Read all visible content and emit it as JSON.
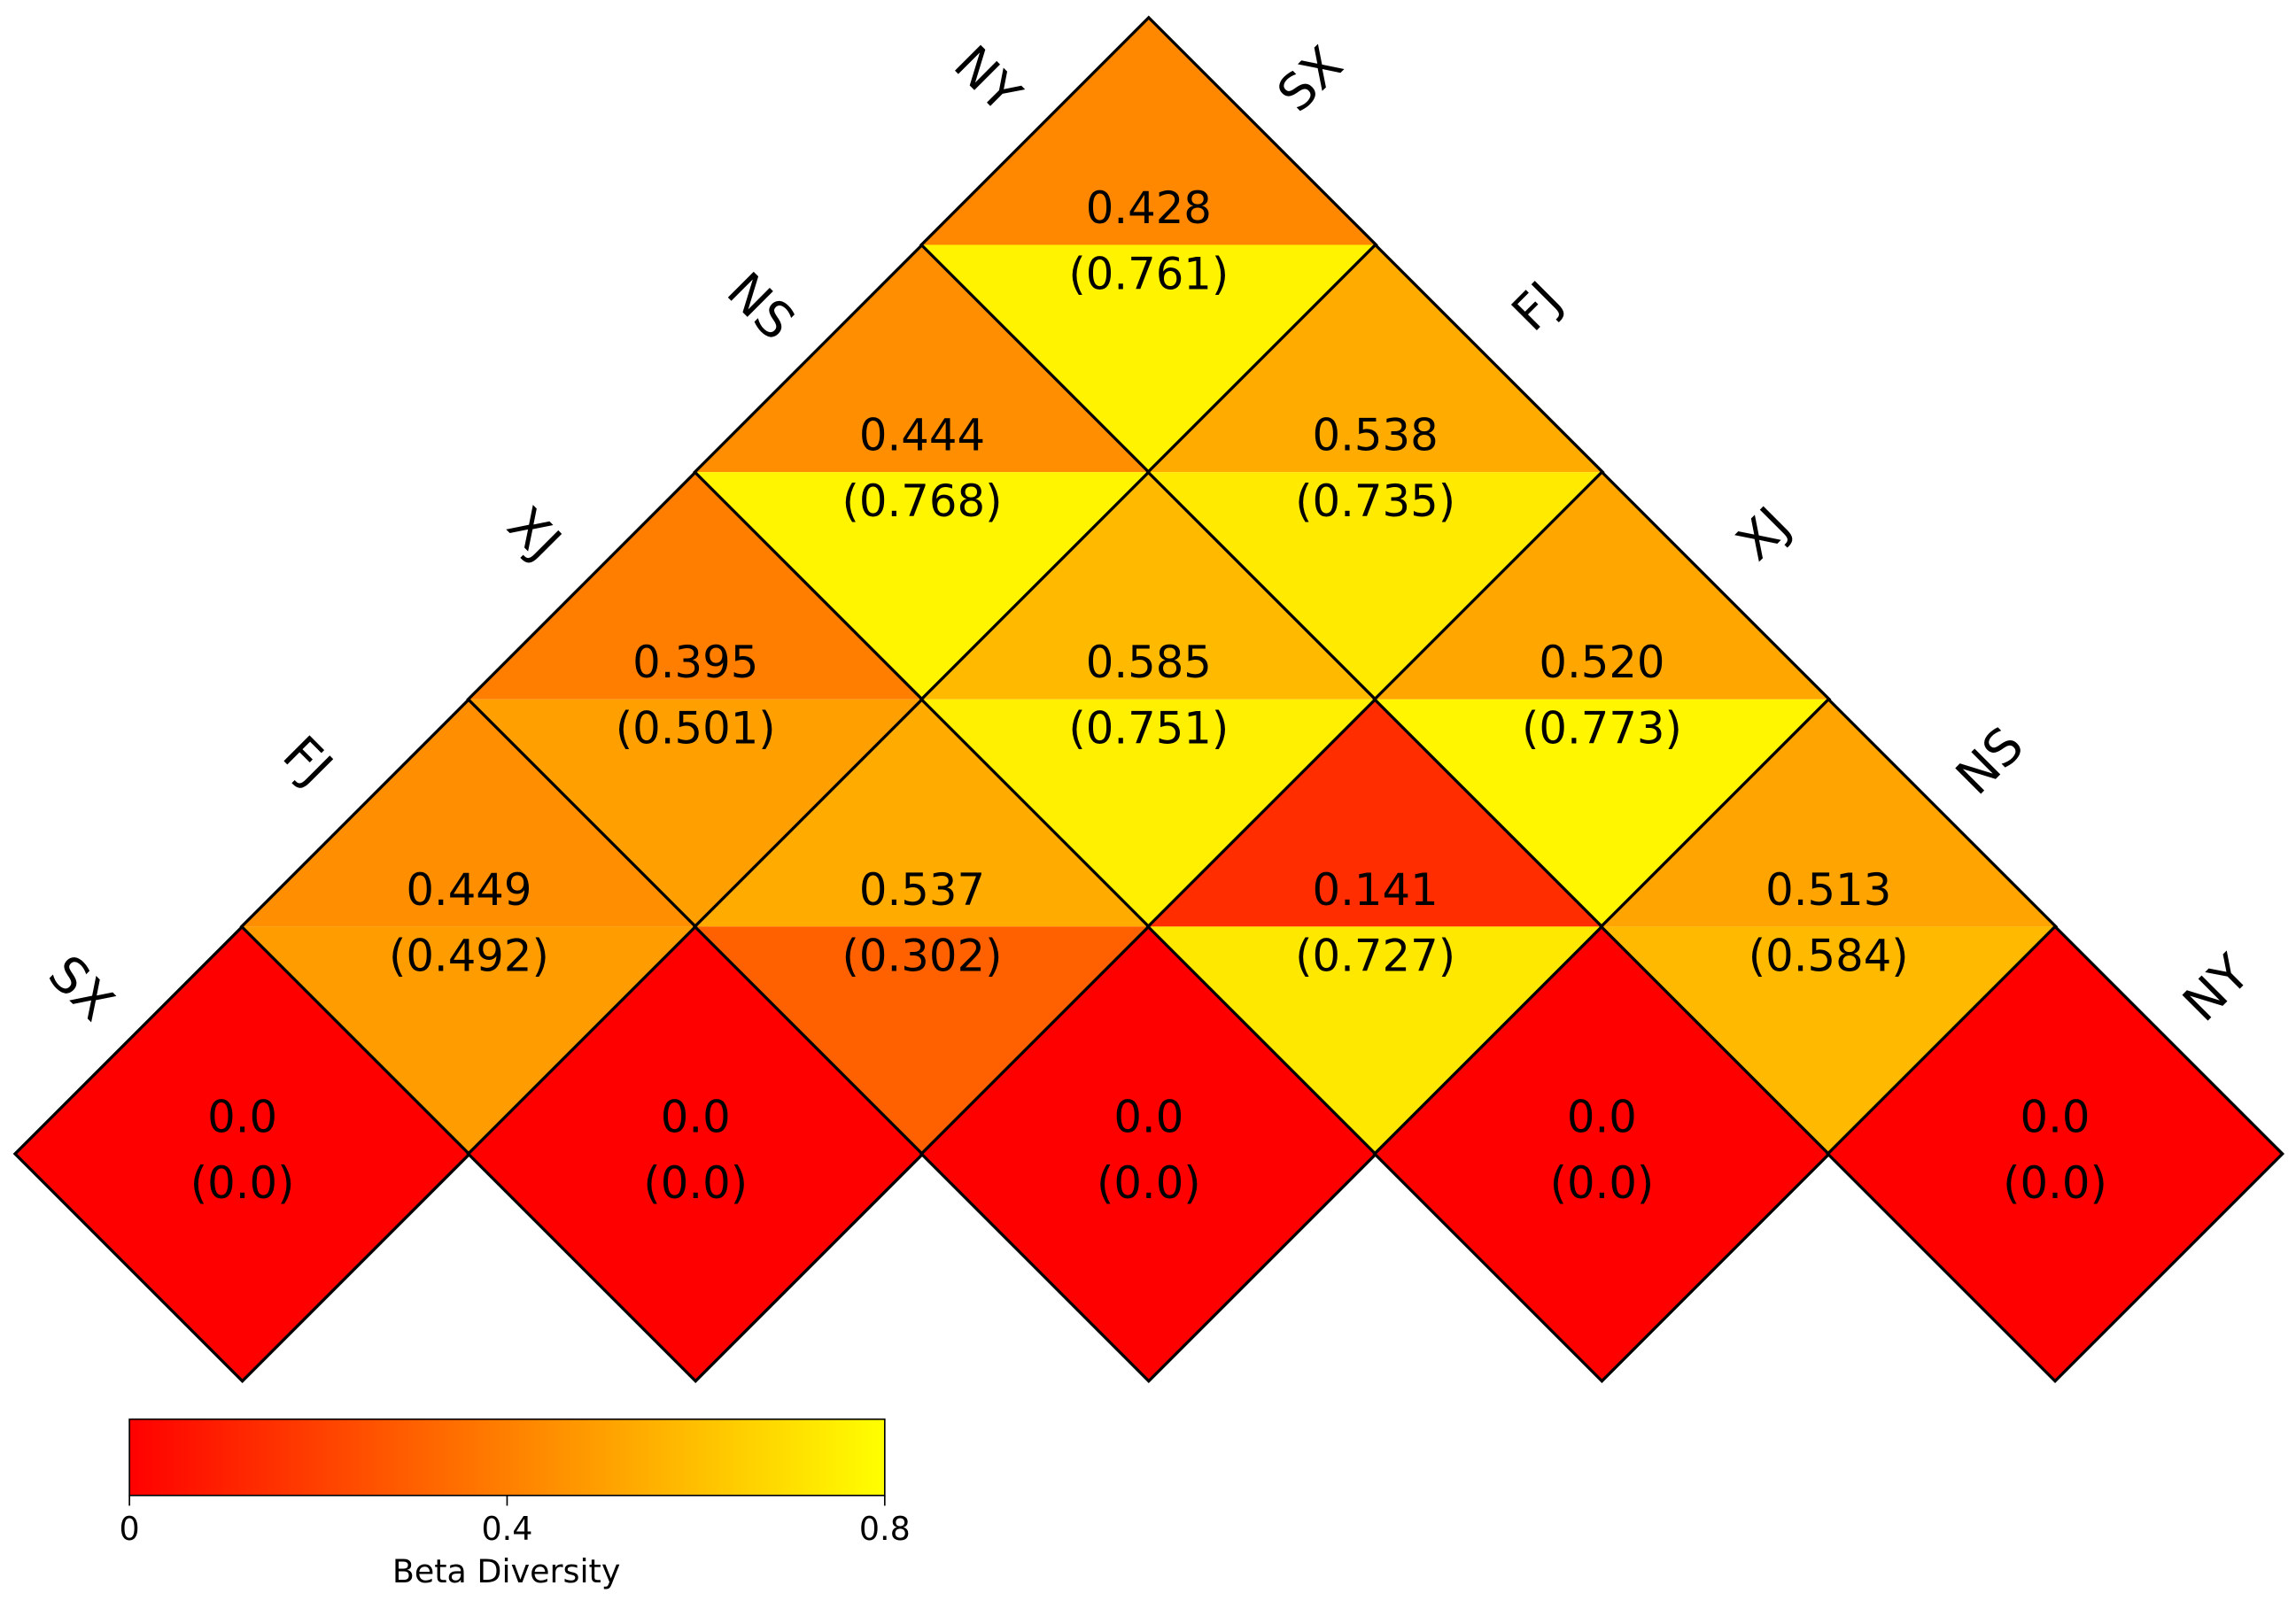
{
  "chart_data": {
    "type": "triangle-heatmap",
    "row_labels": [
      "SX",
      "FJ",
      "XJ",
      "NS",
      "NY"
    ],
    "col_labels": [
      "SX",
      "FJ",
      "XJ",
      "NS",
      "NY"
    ],
    "values": [
      [
        0,
        0.449,
        0.395,
        0.444,
        0.428
      ],
      [
        0,
        0.537,
        0.585,
        0.538
      ],
      [
        0,
        0.141,
        0.52
      ],
      [
        0,
        0.513
      ],
      [
        0
      ]
    ],
    "value_labels": [
      [
        "0.0",
        "0.449",
        "0.395",
        "0.444",
        "0.428"
      ],
      [
        "0.0",
        "0.537",
        "0.585",
        "0.538"
      ],
      [
        "0.0",
        "0.141",
        "0.520"
      ],
      [
        "0.0",
        "0.513"
      ],
      [
        "0.0"
      ]
    ],
    "paren_values": [
      [
        0,
        0.492,
        0.501,
        0.768,
        0.761
      ],
      [
        0,
        0.302,
        0.751,
        0.735
      ],
      [
        0,
        0.727,
        0.773
      ],
      [
        0,
        0.584
      ],
      [
        0
      ]
    ],
    "paren_value_labels": [
      [
        "(0.0)",
        "(0.492)",
        "(0.501)",
        "(0.768)",
        "(0.761)"
      ],
      [
        "(0.0)",
        "(0.302)",
        "(0.751)",
        "(0.735)"
      ],
      [
        "(0.0)",
        "(0.727)",
        "(0.773)"
      ],
      [
        "(0.0)",
        "(0.584)"
      ],
      [
        "(0.0)"
      ]
    ],
    "colorbar": {
      "label": "Beta Diversity",
      "lim": [
        0,
        0.8
      ],
      "ticks": [
        0,
        0.4,
        0.8
      ],
      "colors": [
        "#ff0000",
        "#ffff00"
      ]
    }
  }
}
